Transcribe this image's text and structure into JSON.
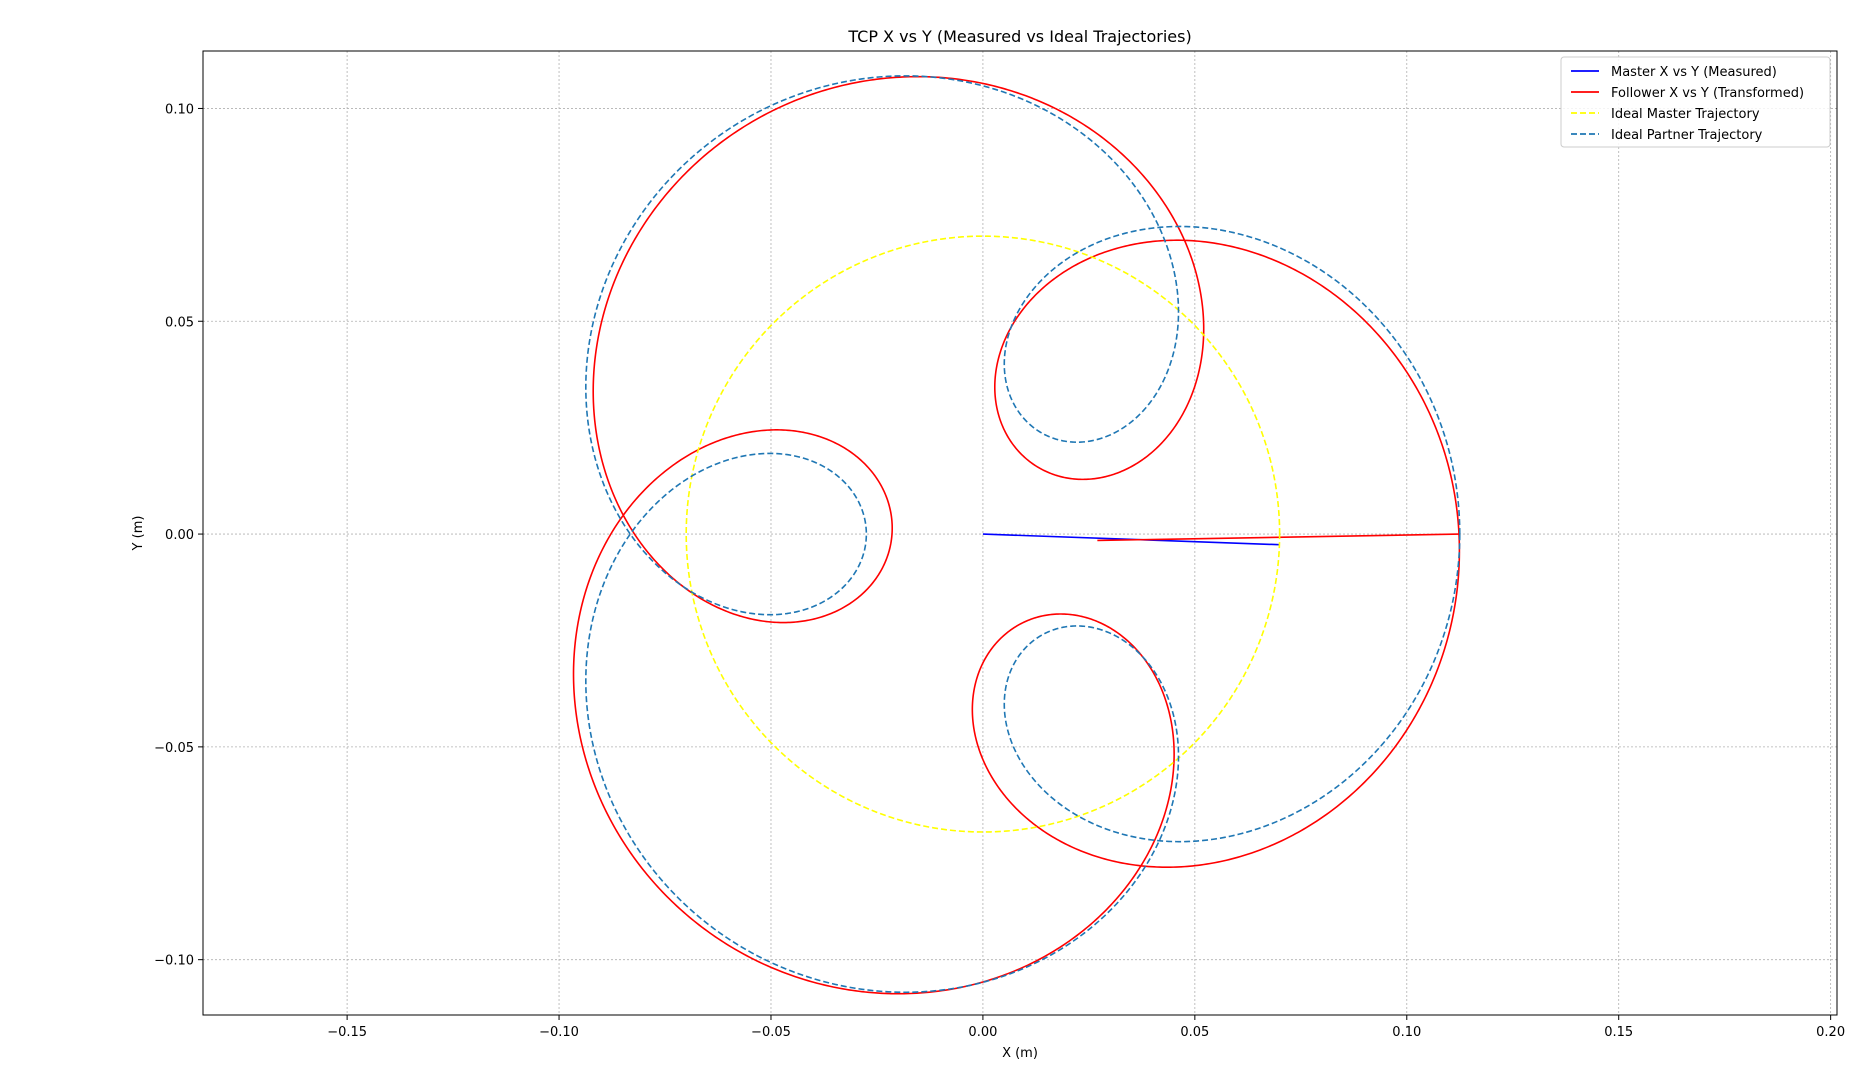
{
  "chart_data": {
    "type": "line",
    "title": "TCP X vs Y (Measured vs Ideal Trajectories)",
    "xlabel": "X (m)",
    "ylabel": "Y (m)",
    "xlim": [
      -0.184,
      0.2015
    ],
    "ylim": [
      -0.113,
      0.1135
    ],
    "xticks": [
      -0.15,
      -0.1,
      -0.05,
      0.0,
      0.05,
      0.1,
      0.15,
      0.2
    ],
    "xtick_labels": [
      "−0.15",
      "−0.10",
      "−0.05",
      "0.00",
      "0.05",
      "0.10",
      "0.15",
      "0.20"
    ],
    "yticks": [
      -0.1,
      -0.05,
      0.0,
      0.05,
      0.1
    ],
    "ytick_labels": [
      "−0.10",
      "−0.05",
      "0.00",
      "0.05",
      "0.10"
    ],
    "grid": true,
    "legend_position": "top-right",
    "series": [
      {
        "name": "Master X vs Y (Measured)",
        "color": "#0000ff",
        "style": "solid",
        "kind": "path",
        "x": [
          0.0,
          0.07
        ],
        "y": [
          0.0,
          -0.0025
        ]
      },
      {
        "name": "Follower X vs Y (Transformed)",
        "color": "#ff0000",
        "style": "solid",
        "kind": "epicycloid",
        "R": 0.067,
        "r": 0.0455,
        "phase_deg": 0,
        "rotation_deg": -4,
        "y_offset": -0.0015,
        "lead_in": {
          "x": [
            0.027,
            0.1125
          ],
          "y": [
            -0.0015,
            0.0
          ]
        }
      },
      {
        "name": "Ideal Master Trajectory",
        "color": "#ffff00",
        "style": "dashed",
        "kind": "circle",
        "R": 0.07
      },
      {
        "name": "Ideal Partner Trajectory",
        "color": "#1f77b4",
        "style": "dashed",
        "kind": "epicycloid",
        "R": 0.07,
        "r": 0.0425,
        "phase_deg": 0,
        "rotation_deg": 0,
        "y_offset": 0
      }
    ]
  }
}
